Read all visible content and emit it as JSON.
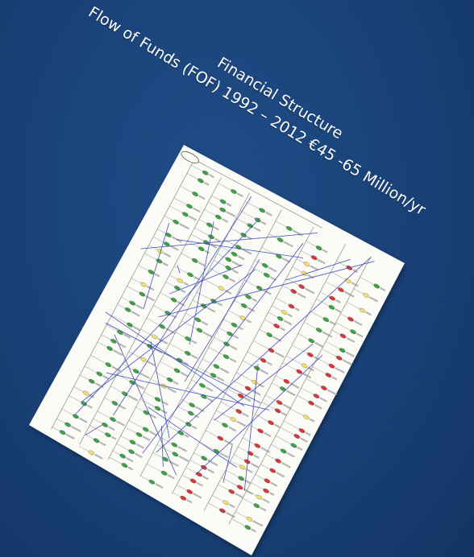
{
  "slide": {
    "title": "Financial Structure",
    "subtitle": "Flow of Funds (FOF) 1992 – 2012 €45 -65 Million/yr"
  },
  "colors": {
    "background": "#1a437a",
    "paper": "#fbfbf7",
    "node_green": "#3fa046",
    "node_red": "#d43a3a",
    "node_yellow": "#f0e070",
    "flow_line": "#3c48b8"
  }
}
